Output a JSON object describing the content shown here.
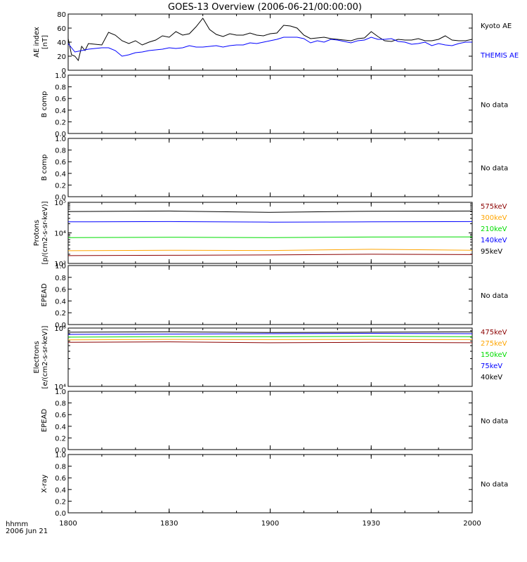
{
  "title": "GOES-13 Overview (2006-06-21/00:00:00)",
  "time_axis": {
    "units_label": "hhmm",
    "date_label": "2006 Jun 21",
    "ticks": [
      "1800",
      "1830",
      "1900",
      "1930",
      "2000"
    ],
    "range_minutes": [
      0,
      120
    ]
  },
  "colors": {
    "black": "#000000",
    "blue": "#0000ff",
    "green": "#00dd00",
    "orange": "#ffa500",
    "darkred": "#8b0000"
  },
  "chart_data": [
    {
      "id": "ae",
      "type": "line",
      "ylabel": "AE index [nT]",
      "ylim": [
        0,
        80
      ],
      "yticks": [
        "0",
        "20",
        "40",
        "60",
        "80"
      ],
      "series": [
        {
          "name": "Kyoto AE",
          "color": "#000000",
          "x": [
            0,
            1,
            2,
            3,
            4,
            5,
            6,
            8,
            10,
            12,
            14,
            16,
            18,
            20,
            22,
            24,
            26,
            28,
            30,
            32,
            34,
            36,
            38,
            40,
            42,
            44,
            46,
            48,
            50,
            52,
            54,
            56,
            58,
            60,
            62,
            64,
            66,
            68,
            70,
            72,
            74,
            76,
            78,
            80,
            82,
            84,
            86,
            88,
            90,
            92,
            94,
            96,
            98,
            100,
            102,
            104,
            106,
            108,
            110,
            112,
            114,
            116,
            118,
            120
          ],
          "y": [
            45,
            22,
            20,
            14,
            34,
            28,
            38,
            37,
            36,
            54,
            50,
            42,
            38,
            42,
            36,
            40,
            43,
            49,
            47,
            55,
            50,
            52,
            62,
            74,
            58,
            51,
            48,
            52,
            50,
            50,
            53,
            50,
            49,
            52,
            53,
            64,
            63,
            60,
            50,
            45,
            46,
            47,
            45,
            44,
            43,
            42,
            45,
            46,
            55,
            48,
            42,
            41,
            44,
            43,
            43,
            45,
            42,
            42,
            44,
            49,
            43,
            42,
            42,
            44
          ]
        },
        {
          "name": "THEMIS AE",
          "color": "#0000ff",
          "x": [
            0,
            2,
            4,
            6,
            8,
            10,
            12,
            14,
            16,
            18,
            20,
            22,
            24,
            26,
            28,
            30,
            32,
            34,
            36,
            38,
            40,
            42,
            44,
            46,
            48,
            50,
            52,
            54,
            56,
            58,
            60,
            62,
            64,
            66,
            68,
            70,
            72,
            74,
            76,
            78,
            80,
            82,
            84,
            86,
            88,
            90,
            92,
            94,
            96,
            98,
            100,
            102,
            104,
            106,
            108,
            110,
            112,
            114,
            116,
            118,
            120
          ],
          "y": [
            38,
            26,
            28,
            30,
            31,
            32,
            32,
            28,
            20,
            22,
            25,
            26,
            28,
            29,
            30,
            32,
            31,
            32,
            35,
            33,
            33,
            34,
            35,
            33,
            35,
            36,
            36,
            39,
            38,
            40,
            42,
            44,
            47,
            47,
            47,
            45,
            39,
            42,
            40,
            44,
            43,
            41,
            39,
            42,
            43,
            47,
            44,
            44,
            45,
            41,
            40,
            37,
            38,
            40,
            35,
            38,
            36,
            35,
            38,
            40,
            40
          ]
        }
      ]
    },
    {
      "id": "bcomp1",
      "type": "line",
      "ylabel": "B comp",
      "ylim": [
        0,
        1
      ],
      "yticks": [
        "0.0",
        "0.2",
        "0.4",
        "0.6",
        "0.8",
        "1.0"
      ],
      "series": [],
      "status": "No data"
    },
    {
      "id": "bcomp2",
      "type": "line",
      "ylabel": "B comp",
      "ylim": [
        0,
        1
      ],
      "yticks": [
        "0.0",
        "0.2",
        "0.4",
        "0.6",
        "0.8",
        "1.0"
      ],
      "series": [],
      "status": "No data"
    },
    {
      "id": "protons",
      "type": "line",
      "log": true,
      "ylabel": "Protons [p/(cm2-s-sr-keV)]",
      "ylim": [
        1000,
        100000
      ],
      "yticks": [
        "10³",
        "10⁴",
        "10⁵"
      ],
      "series": [
        {
          "name": "575keV",
          "color": "#8b0000",
          "x": [
            0,
            30,
            60,
            90,
            120
          ],
          "y": [
            1800,
            1850,
            1900,
            2000,
            1950
          ]
        },
        {
          "name": "300keV",
          "color": "#ffa500",
          "x": [
            0,
            30,
            60,
            90,
            120
          ],
          "y": [
            2600,
            2700,
            2650,
            2900,
            2700
          ]
        },
        {
          "name": "210keV",
          "color": "#00dd00",
          "x": [
            0,
            30,
            60,
            90,
            120
          ],
          "y": [
            7000,
            7200,
            7000,
            7300,
            7400
          ]
        },
        {
          "name": "140keV",
          "color": "#0000ff",
          "x": [
            0,
            30,
            60,
            90,
            120
          ],
          "y": [
            23000,
            23500,
            22500,
            23000,
            23500
          ]
        },
        {
          "name": "95keV",
          "color": "#000000",
          "x": [
            0,
            30,
            60,
            90,
            120
          ],
          "y": [
            50000,
            52000,
            47000,
            51000,
            52000
          ]
        }
      ]
    },
    {
      "id": "epead1",
      "type": "line",
      "ylabel": "EPEAD",
      "ylim": [
        0,
        1
      ],
      "yticks": [
        "0.0",
        "0.2",
        "0.4",
        "0.6",
        "0.8",
        "1.0"
      ],
      "series": [],
      "status": "No data"
    },
    {
      "id": "electrons",
      "type": "line",
      "log": true,
      "ylabel": "Electrons [e/(cm2-s-sr-keV)]",
      "ylim": [
        10000,
        100000
      ],
      "yticks": [
        "10⁴",
        "10⁵"
      ],
      "series": [
        {
          "name": "475keV",
          "color": "#8b0000",
          "x": [
            0,
            30,
            60,
            90,
            120
          ],
          "y": [
            57000,
            58000,
            56000,
            57000,
            56000
          ]
        },
        {
          "name": "275keV",
          "color": "#ffa500",
          "x": [
            0,
            30,
            60,
            90,
            120
          ],
          "y": [
            63000,
            64000,
            63500,
            64000,
            63500
          ]
        },
        {
          "name": "150keV",
          "color": "#00dd00",
          "x": [
            0,
            30,
            60,
            90,
            120
          ],
          "y": [
            70000,
            71000,
            71000,
            72000,
            71000
          ]
        },
        {
          "name": "75keV",
          "color": "#0000ff",
          "x": [
            0,
            30,
            60,
            90,
            120
          ],
          "y": [
            78000,
            79000,
            80000,
            81000,
            80000
          ]
        },
        {
          "name": "40keV",
          "color": "#000000",
          "x": [
            0,
            30,
            60,
            90,
            120
          ],
          "y": [
            85000,
            86000,
            84000,
            85000,
            86000
          ]
        }
      ]
    },
    {
      "id": "epead2",
      "type": "line",
      "ylabel": "EPEAD",
      "ylim": [
        0,
        1
      ],
      "yticks": [
        "0.0",
        "0.2",
        "0.4",
        "0.6",
        "0.8",
        "1.0"
      ],
      "series": [],
      "status": "No data"
    },
    {
      "id": "xray",
      "type": "line",
      "ylabel": "X-ray",
      "ylim": [
        0,
        1
      ],
      "yticks": [
        "0.0",
        "0.2",
        "0.4",
        "0.6",
        "0.8",
        "1.0"
      ],
      "series": [],
      "status": "No data"
    }
  ]
}
